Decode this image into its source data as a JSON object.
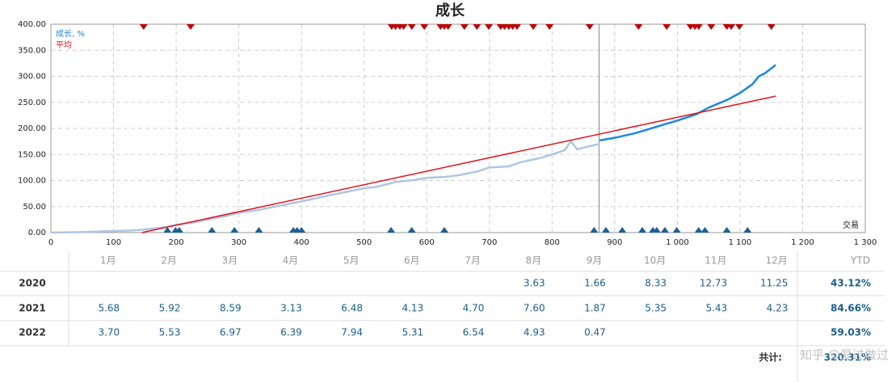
{
  "chart_data": {
    "type": "line",
    "title": "成长",
    "xlim": [
      0,
      1300
    ],
    "xticks": [
      0,
      100,
      200,
      300,
      400,
      500,
      600,
      700,
      800,
      900,
      {
        "value": 1000,
        "label": "1 000"
      },
      {
        "value": 1100,
        "label": "1 100"
      },
      {
        "value": 1200,
        "label": "1 200"
      },
      {
        "value": 1300,
        "label": "1 300"
      }
    ],
    "ylim": [
      0,
      400
    ],
    "yticks": [
      {
        "value": 0,
        "label": "0.00"
      },
      {
        "value": 50,
        "label": "50.00"
      },
      {
        "value": 100,
        "label": "100.00"
      },
      {
        "value": 150,
        "label": "150.00"
      },
      {
        "value": 200,
        "label": "200.00"
      },
      {
        "value": 250,
        "label": "250.00"
      },
      {
        "value": 300,
        "label": "300.00"
      },
      {
        "value": 350,
        "label": "350.00"
      },
      {
        "value": 400,
        "label": "400.00"
      }
    ],
    "grid": true,
    "x_label": "交易",
    "divider_x": 875,
    "series": [
      {
        "name": "成长, %",
        "color": "#1a86e8",
        "history_color": "#aec6e2",
        "x": [
          0,
          50,
          100,
          130,
          150,
          180,
          200,
          230,
          250,
          280,
          300,
          330,
          350,
          380,
          400,
          420,
          450,
          480,
          500,
          520,
          550,
          580,
          600,
          630,
          650,
          680,
          700,
          730,
          750,
          780,
          800,
          820,
          830,
          840,
          860,
          875,
          876,
          900,
          930,
          950,
          980,
          1000,
          1030,
          1050,
          1080,
          1100,
          1120,
          1130,
          1140,
          1157
        ],
        "values": [
          0,
          1,
          3,
          4,
          6,
          10,
          15,
          20,
          25,
          32,
          38,
          43,
          48,
          55,
          60,
          65,
          73,
          80,
          85,
          88,
          97,
          101,
          105,
          107,
          110,
          117,
          125,
          127,
          135,
          143,
          150,
          158,
          175,
          160,
          166,
          170,
          177,
          182,
          190,
          197,
          208,
          215,
          227,
          240,
          255,
          268,
          285,
          300,
          306,
          322
        ]
      },
      {
        "name": "平均",
        "color": "#e0141e",
        "x": [
          145,
          1157
        ],
        "values": [
          0,
          262
        ]
      }
    ],
    "top_markers": {
      "color": "#c00000",
      "x": [
        148,
        223,
        544,
        550,
        557,
        563,
        576,
        596,
        622,
        628,
        634,
        660,
        680,
        699,
        718,
        724,
        731,
        737,
        744,
        770,
        796,
        860,
        938,
        983,
        1021,
        1028,
        1034,
        1054,
        1079,
        1086,
        1099,
        1150
      ]
    },
    "bottom_markers": {
      "color": "#1f5f99",
      "x": [
        186,
        199,
        205,
        257,
        293,
        332,
        387,
        393,
        400,
        543,
        576,
        628,
        867,
        886,
        912,
        944,
        961,
        967,
        980,
        999,
        1034,
        1044,
        1079,
        1112
      ]
    }
  },
  "table": {
    "headers": [
      "1月",
      "2月",
      "3月",
      "4月",
      "5月",
      "6月",
      "7月",
      "8月",
      "9月",
      "10月",
      "11月",
      "12月",
      "YTD"
    ],
    "rows": [
      {
        "year": "2020",
        "values": [
          null,
          null,
          null,
          null,
          null,
          null,
          null,
          "3.63",
          "1.66",
          "8.33",
          "12.73",
          "11.25"
        ],
        "ytd": "43.12%"
      },
      {
        "year": "2021",
        "values": [
          "5.68",
          "5.92",
          "8.59",
          "3.13",
          "6.48",
          "4.13",
          "4.70",
          "7.60",
          "1.87",
          "5.35",
          "5.43",
          "4.23"
        ],
        "ytd": "84.66%"
      },
      {
        "year": "2022",
        "values": [
          "3.70",
          "5.53",
          "6.97",
          "6.39",
          "7.94",
          "5.31",
          "6.54",
          "4.93",
          "0.47",
          null,
          null,
          null
        ],
        "ytd": "59.03%"
      }
    ],
    "total_label": "共计:",
    "total": "320.31%"
  },
  "watermark": "知乎 @爱过做过"
}
